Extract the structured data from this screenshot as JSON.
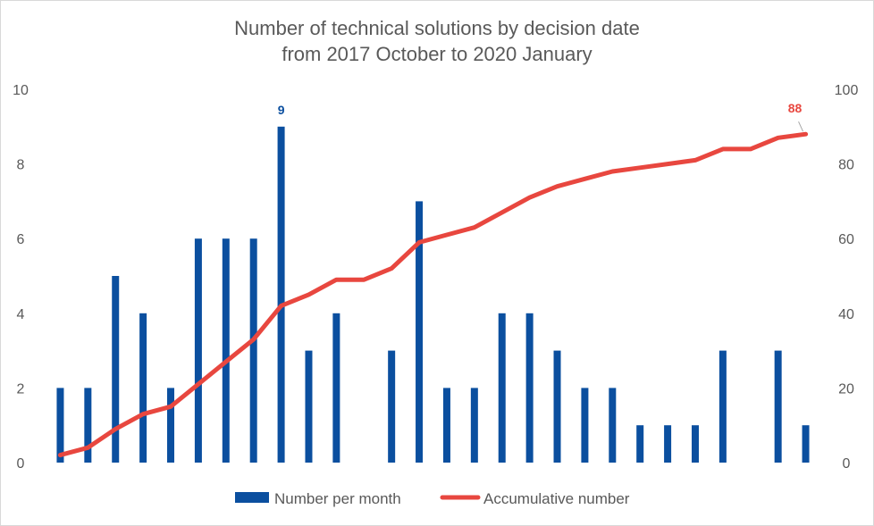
{
  "chart_data": {
    "type": "bar",
    "title": "Number of technical solutions by decision date",
    "subtitle": "from 2017 October to 2020 January",
    "xlabel": "",
    "ylabel": "",
    "y_left_lim": [
      0,
      10
    ],
    "y_right_lim": [
      0,
      100
    ],
    "y_left_ticks": [
      "0",
      "2",
      "4",
      "6",
      "8",
      "10"
    ],
    "y_right_ticks": [
      "0",
      "20",
      "40",
      "60",
      "80",
      "100"
    ],
    "grid": false,
    "legend_position": "bottom",
    "series": [
      {
        "name": "Number per month",
        "type": "bar",
        "axis": "left",
        "color": "#0b4f9f",
        "values": [
          2,
          2,
          5,
          4,
          2,
          6,
          6,
          6,
          9,
          3,
          4,
          0,
          3,
          7,
          2,
          2,
          4,
          4,
          3,
          2,
          2,
          1,
          1,
          1,
          3,
          0,
          3,
          1
        ]
      },
      {
        "name": "Accumulative number",
        "type": "line",
        "axis": "right",
        "color": "#e8473f",
        "values": [
          2,
          4,
          9,
          13,
          15,
          21,
          27,
          33,
          42,
          45,
          49,
          49,
          52,
          59,
          61,
          63,
          67,
          71,
          74,
          76,
          78,
          79,
          80,
          81,
          84,
          84,
          87,
          88
        ]
      }
    ],
    "data_labels": [
      {
        "series": "Number per month",
        "index": 8,
        "text": "9"
      },
      {
        "series": "Accumulative number",
        "index": 27,
        "text": "88"
      }
    ]
  }
}
